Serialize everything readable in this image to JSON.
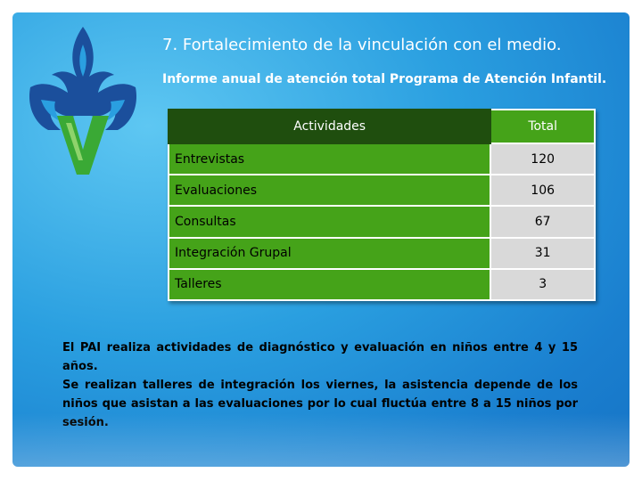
{
  "header": {
    "title": "7. Fortalecimiento de la vinculación con el medio.",
    "subtitle": "Informe anual de atención total Programa de Atención Infantil."
  },
  "table": {
    "headers": [
      "Actividades",
      "Total"
    ],
    "rows": [
      {
        "actividad": "Entrevistas",
        "total": "120"
      },
      {
        "actividad": "Evaluaciones",
        "total": "106"
      },
      {
        "actividad": "Consultas",
        "total": "67"
      },
      {
        "actividad": "Integración Grupal",
        "total": "31"
      },
      {
        "actividad": "Talleres",
        "total": "3"
      }
    ]
  },
  "notes": [
    "El PAI realiza actividades de diagnóstico y evaluación en niños entre 4 y 15 años.",
    "Se realizan talleres de integración los viernes, la asistencia depende de los niños que asistan a las evaluaciones por lo cual fluctúa entre 8 a 15 niños por sesión."
  ],
  "colors": {
    "background": "#2a9fe0",
    "header_dark_green": "#1f4e0e",
    "green": "#45a319",
    "gray": "#d9d9d9",
    "logo_blue": "#1b4f9c",
    "logo_green": "#3aa935"
  },
  "logo": {
    "icon": "veracruz-v-logo"
  }
}
